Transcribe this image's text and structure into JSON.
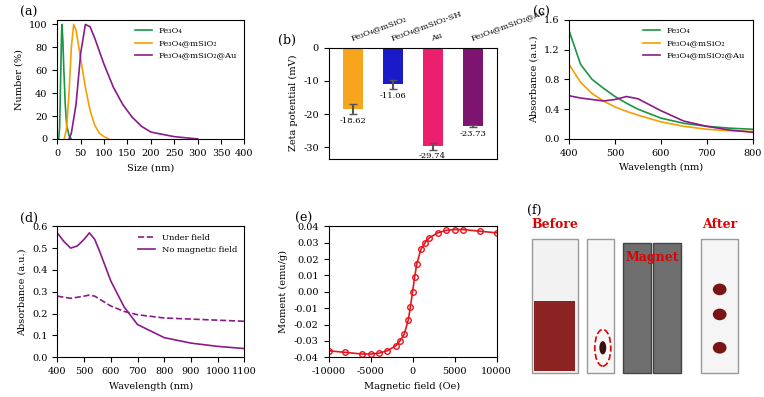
{
  "chart_data": [
    {
      "type": "line",
      "title": "(a)",
      "x_label": "Size (nm)",
      "y_label": "Number (%)",
      "xlim": [
        0,
        400
      ],
      "xticks": [
        0,
        50,
        100,
        150,
        200,
        250,
        300,
        350,
        400
      ],
      "ylim": [
        0,
        104
      ],
      "yticks": [
        0,
        20,
        40,
        60,
        80,
        100
      ],
      "legend": "upper right",
      "series": [
        {
          "name": "Fe₃O₄",
          "color": "#1a9641",
          "line_style": "solid",
          "x": [
            3,
            5,
            7,
            9,
            10,
            12,
            14,
            17,
            20,
            25,
            30
          ],
          "values": [
            0,
            10,
            50,
            90,
            100,
            85,
            60,
            30,
            12,
            3,
            0
          ]
        },
        {
          "name": "Fe₃O₄@mSiO₂",
          "color": "#f5a000",
          "line_style": "solid",
          "x": [
            15,
            20,
            25,
            30,
            35,
            40,
            50,
            60,
            70,
            80,
            90,
            100,
            110
          ],
          "values": [
            0,
            10,
            40,
            80,
            100,
            95,
            70,
            45,
            25,
            12,
            5,
            2,
            0
          ]
        },
        {
          "name": "Fe₃O₄@mSiO₂@Au",
          "color": "#8b1a89",
          "line_style": "solid",
          "x": [
            25,
            30,
            40,
            50,
            60,
            70,
            80,
            100,
            120,
            140,
            160,
            180,
            200,
            250,
            300
          ],
          "values": [
            0,
            5,
            30,
            75,
            100,
            98,
            88,
            65,
            45,
            30,
            19,
            11,
            6,
            2,
            0
          ]
        }
      ]
    },
    {
      "type": "bar",
      "title": "(b)",
      "y_label": "Zeta potential (mV)",
      "categories": [
        "Fe₃O₄@mSiO₂",
        "Fe₃O₄@mSiO₂-SH",
        "Au",
        "Fe₃O₄@mSiO₂@Au"
      ],
      "values": [
        -18.62,
        -11.06,
        -29.74,
        -23.73
      ],
      "errors": [
        1.5,
        1.4,
        1.0,
        0.3
      ],
      "colors": [
        "#f7a51c",
        "#1a1ac8",
        "#ec1e6e",
        "#7d1470"
      ],
      "ylim": [
        -33.5,
        0
      ],
      "yticks": [
        -30,
        -20,
        -10,
        0
      ],
      "data_labels": true
    },
    {
      "type": "line",
      "title": "(c)",
      "x_label": "Wavelength (nm)",
      "y_label": "Absorbance (a.u.)",
      "xlim": [
        400,
        800
      ],
      "xticks": [
        400,
        500,
        600,
        700,
        800
      ],
      "ylim": [
        0,
        1.6
      ],
      "yticks": [
        {
          "value": 0,
          "label": "0.0"
        },
        {
          "value": 0.4,
          "label": "0.4"
        },
        {
          "value": 0.8,
          "label": "0.8"
        },
        {
          "value": 1.2,
          "label": "1.2"
        },
        {
          "value": 1.6,
          "label": "1.6"
        }
      ],
      "legend": "upper right",
      "series": [
        {
          "name": "Fe₃O₄",
          "color": "#1a9641",
          "line_style": "solid",
          "x": [
            400,
            425,
            450,
            475,
            500,
            525,
            550,
            600,
            650,
            700,
            750,
            800
          ],
          "values": [
            1.45,
            1.0,
            0.8,
            0.68,
            0.57,
            0.48,
            0.4,
            0.28,
            0.21,
            0.17,
            0.145,
            0.13
          ]
        },
        {
          "name": "Fe₃O₄@mSiO₂",
          "color": "#f5a000",
          "line_style": "solid",
          "x": [
            400,
            425,
            450,
            475,
            500,
            525,
            550,
            600,
            650,
            700,
            750,
            800
          ],
          "values": [
            1.0,
            0.76,
            0.61,
            0.51,
            0.43,
            0.37,
            0.32,
            0.23,
            0.17,
            0.13,
            0.11,
            0.1
          ]
        },
        {
          "name": "Fe₃O₄@mSiO₂@Au",
          "color": "#8b1a89",
          "line_style": "solid",
          "x": [
            400,
            425,
            450,
            475,
            500,
            525,
            550,
            600,
            650,
            700,
            750,
            800
          ],
          "values": [
            0.58,
            0.55,
            0.53,
            0.51,
            0.53,
            0.57,
            0.54,
            0.38,
            0.24,
            0.17,
            0.12,
            0.09
          ]
        }
      ]
    },
    {
      "type": "line",
      "title": "(d)",
      "x_label": "Wavelength (nm)",
      "y_label": "Absorbance (a.u.)",
      "xlim": [
        400,
        1100
      ],
      "xticks": [
        400,
        500,
        600,
        700,
        800,
        900,
        1000,
        1100
      ],
      "ylim": [
        0,
        0.6
      ],
      "yticks": [
        {
          "value": 0,
          "label": "0.0"
        },
        {
          "value": 0.1,
          "label": "0.1"
        },
        {
          "value": 0.2,
          "label": "0.2"
        },
        {
          "value": 0.3,
          "label": "0.3"
        },
        {
          "value": 0.4,
          "label": "0.4"
        },
        {
          "value": 0.5,
          "label": "0.5"
        },
        {
          "value": 0.6,
          "label": "0.6"
        }
      ],
      "legend": "upper right",
      "series": [
        {
          "name": "Under field",
          "color": "#8b1a89",
          "line_style": "dashed",
          "x": [
            400,
            425,
            450,
            475,
            500,
            520,
            540,
            560,
            600,
            650,
            700,
            800,
            900,
            1000,
            1100
          ],
          "values": [
            0.28,
            0.275,
            0.27,
            0.275,
            0.28,
            0.285,
            0.28,
            0.265,
            0.235,
            0.21,
            0.195,
            0.18,
            0.175,
            0.17,
            0.165
          ]
        },
        {
          "name": "No magnetic field",
          "color": "#8b1a89",
          "line_style": "solid",
          "x": [
            400,
            425,
            450,
            475,
            500,
            520,
            540,
            560,
            600,
            650,
            700,
            800,
            900,
            1000,
            1100
          ],
          "values": [
            0.57,
            0.53,
            0.5,
            0.51,
            0.54,
            0.57,
            0.54,
            0.48,
            0.35,
            0.23,
            0.15,
            0.09,
            0.065,
            0.05,
            0.04
          ]
        }
      ]
    },
    {
      "type": "line",
      "title": "(e)",
      "x_label": "Magnetic field (Oe)",
      "y_label": "Moment (emu/g)",
      "xlim": [
        -10000,
        10000
      ],
      "xticks": [
        -10000,
        -5000,
        0,
        5000,
        10000
      ],
      "ylim": [
        -0.04,
        0.04
      ],
      "yticks": [
        {
          "value": -0.04,
          "label": "-0.04"
        },
        {
          "value": -0.03,
          "label": "-0.03"
        },
        {
          "value": -0.02,
          "label": "-0.02"
        },
        {
          "value": -0.01,
          "label": "-0.01"
        },
        {
          "value": 0,
          "label": "0.00"
        },
        {
          "value": 0.01,
          "label": "0.01"
        },
        {
          "value": 0.02,
          "label": "0.02"
        },
        {
          "value": 0.03,
          "label": "0.03"
        },
        {
          "value": 0.04,
          "label": "0.04"
        }
      ],
      "series": [
        {
          "color": "#e8141c",
          "marker": "o",
          "line_style": "solid",
          "x": [
            -10000,
            -8000,
            -6000,
            -5000,
            -4000,
            -3000,
            -2000,
            -1500,
            -1000,
            -500,
            -250,
            0,
            250,
            500,
            1000,
            1500,
            2000,
            3000,
            4000,
            5000,
            6000,
            8000,
            10000
          ],
          "values": [
            -0.036,
            -0.037,
            -0.038,
            -0.038,
            -0.0375,
            -0.036,
            -0.033,
            -0.03,
            -0.026,
            -0.017,
            -0.009,
            0,
            0.009,
            0.017,
            0.026,
            0.03,
            0.033,
            0.036,
            0.0375,
            0.038,
            0.038,
            0.037,
            0.036
          ]
        }
      ]
    },
    {
      "type": "image",
      "title": "(f)",
      "annotations": [
        "Before",
        "Magnet",
        "After"
      ]
    }
  ]
}
